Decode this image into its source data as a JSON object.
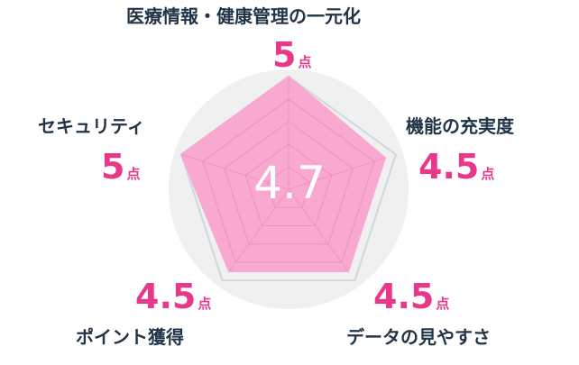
{
  "chart_data": {
    "type": "radar",
    "categories": [
      "医療情報・健康管理の一元化",
      "機能の充実度",
      "データの見やすさ",
      "ポイント獲得",
      "セキュリティ"
    ],
    "values": [
      5,
      4.5,
      4.5,
      4.5,
      5
    ],
    "unit": "点",
    "average": "4.7",
    "rmax": 5,
    "rings": 5,
    "colors": {
      "fill": "#f9a8cf",
      "outline": "#d0d8df",
      "background": "#f0f0f0",
      "grid": "#e67fb0",
      "label": "#223548",
      "score": "#e8388a"
    }
  }
}
